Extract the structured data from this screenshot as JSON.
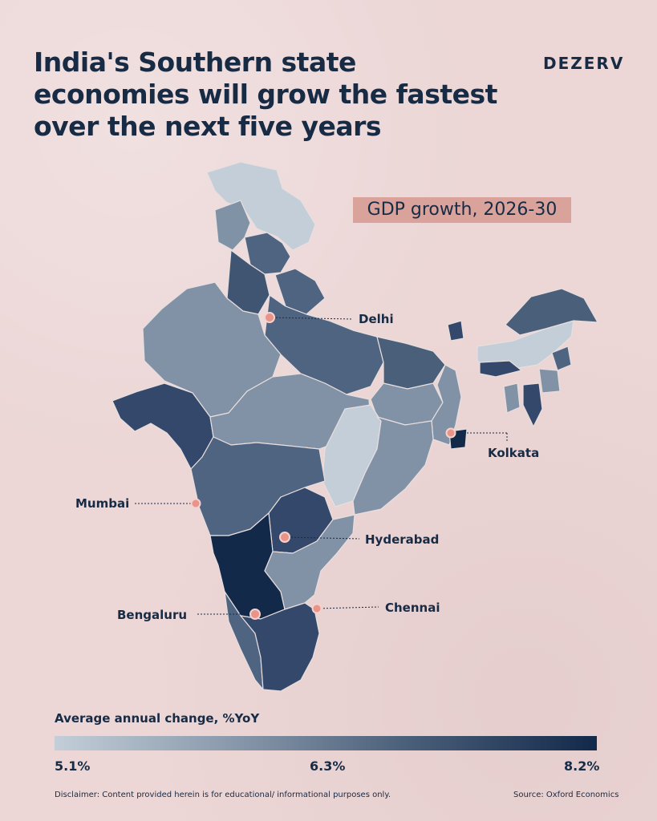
{
  "title": "India's Southern state economies will grow the fastest over the next five years",
  "brand": "DEZERV",
  "badge": "GDP growth, 2026-30",
  "cities": [
    {
      "name": "Delhi"
    },
    {
      "name": "Kolkata"
    },
    {
      "name": "Mumbai"
    },
    {
      "name": "Hyderabad"
    },
    {
      "name": "Bengaluru"
    },
    {
      "name": "Chennai"
    }
  ],
  "legend": {
    "title": "Average annual change, %YoY",
    "min": "5.1%",
    "mid": "6.3%",
    "max": "8.2%"
  },
  "disclaimer": "Disclaimer: Content provided herein is for educational/ informational purposes only.",
  "source": "Source: Oxford Economics",
  "colors": {
    "background": "#ecd6d6",
    "text": "#172b45",
    "badge": "#d9a39b",
    "scale_low": "#c3ced8",
    "scale_high": "#13294a",
    "city_marker": "#e8948a"
  }
}
